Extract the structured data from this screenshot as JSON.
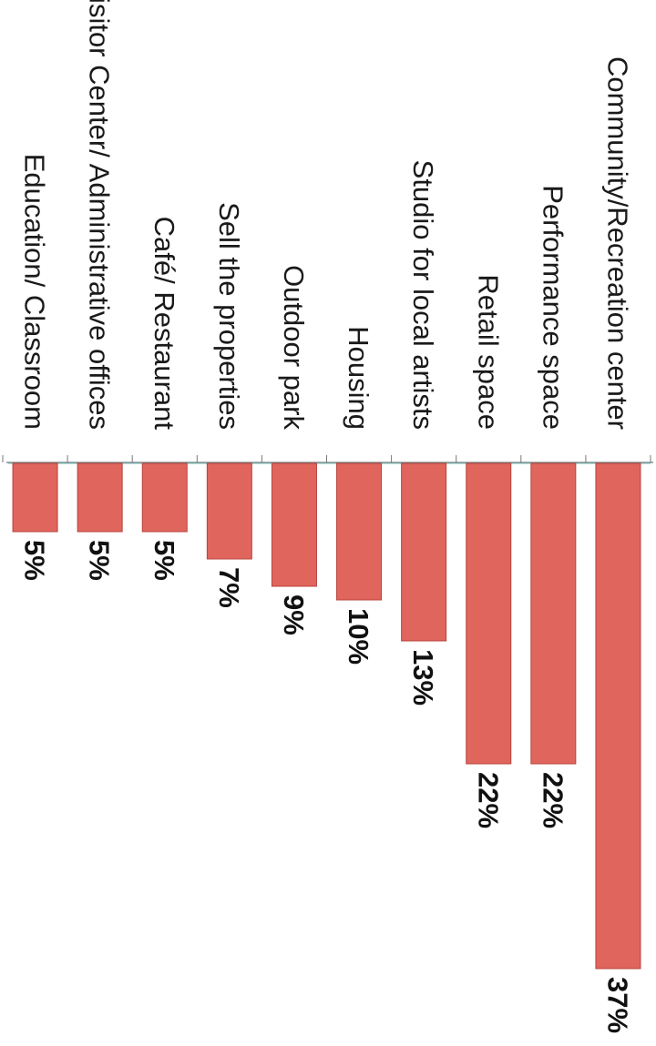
{
  "chart_data": {
    "type": "bar",
    "orientation": "horizontal-rotated",
    "categories": [
      "Community/Recreation center",
      "Performance space",
      "Retail space",
      "Studio for local artists",
      "Housing",
      "Outdoor park",
      "Sell the properties",
      "Café/ Restaurant",
      "Visitor Center/ Administrative offices",
      "Education/ Classroom"
    ],
    "values": [
      37,
      22,
      22,
      13,
      10,
      9,
      7,
      5,
      5,
      5
    ],
    "value_labels": [
      "37%",
      "22%",
      "22%",
      "13%",
      "10%",
      "9%",
      "7%",
      "5%",
      "5%",
      "5%"
    ],
    "unit": "%",
    "bar_color": "#e0655c",
    "bar_edge_color": "#b8443d",
    "grid": false,
    "legend": "none"
  }
}
